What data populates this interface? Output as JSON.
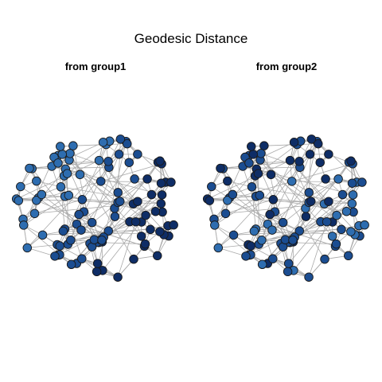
{
  "chart_data": {
    "type": "network",
    "title": "Geodesic Distance",
    "panels": [
      {
        "title": "from group1"
      },
      {
        "title": "from group2"
      }
    ],
    "edge_color": "#aaaaaa",
    "node_outline_color": "#1a1a1a",
    "node_colors": {
      "near": "#2e6db0",
      "mid": "#1b4d91",
      "far": "#0e2d66"
    },
    "note": "Two force-directed network layouts of the same graph; node shade encodes geodesic distance from each source group (lighter = nearer)."
  }
}
